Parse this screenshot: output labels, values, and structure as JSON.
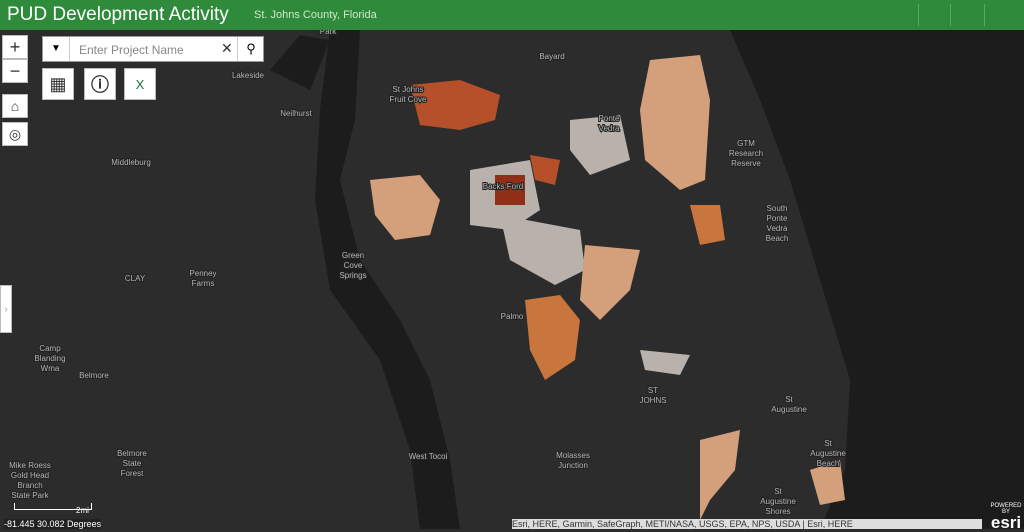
{
  "header": {
    "title": "PUD Development Activity",
    "subtitle": "St. Johns County, Florida"
  },
  "search": {
    "placeholder": "Enter Project Name"
  },
  "map": {
    "labels": [
      [
        "Park"
      ],
      [
        "Bayard"
      ],
      [
        "Lakeside"
      ],
      [
        "St Johns",
        "Fruit Cove"
      ],
      [
        "Neilhurst"
      ],
      [
        "Ponte",
        "Vedra"
      ],
      [
        "Middleburg"
      ],
      [
        "GTM",
        "Research",
        "Reserve"
      ],
      [
        "Backs Ford"
      ],
      [
        "South",
        "Ponte",
        "Vedra",
        "Beach"
      ],
      [
        "Green",
        "Cove",
        "Springs"
      ],
      [
        "Penney",
        "Farms"
      ],
      [
        "CLAY"
      ],
      [
        "Palmo"
      ],
      [
        "Camp",
        "Blanding",
        "Wma"
      ],
      [
        "Belmore"
      ],
      [
        "ST",
        "JOHNS"
      ],
      [
        "St",
        "Augustine"
      ],
      [
        "St",
        "Augustine",
        "Beach"
      ],
      [
        "West Tocoi"
      ],
      [
        "Molasses",
        "Junction"
      ],
      [
        "Belmore",
        "State",
        "Forest"
      ],
      [
        "Mike Roess",
        "Gold Head",
        "Branch",
        "State Park"
      ],
      [
        "St",
        "Augustine",
        "Shores"
      ]
    ]
  },
  "scale": "2mi",
  "coordinates": "-81.445 30.082 Degrees",
  "attribution": "Esri, HERE, Garmin, SafeGraph, METI/NASA, USGS, EPA, NPS, USDA | Esri, HERE",
  "powered_by": [
    "POWERED BY",
    "esri"
  ]
}
